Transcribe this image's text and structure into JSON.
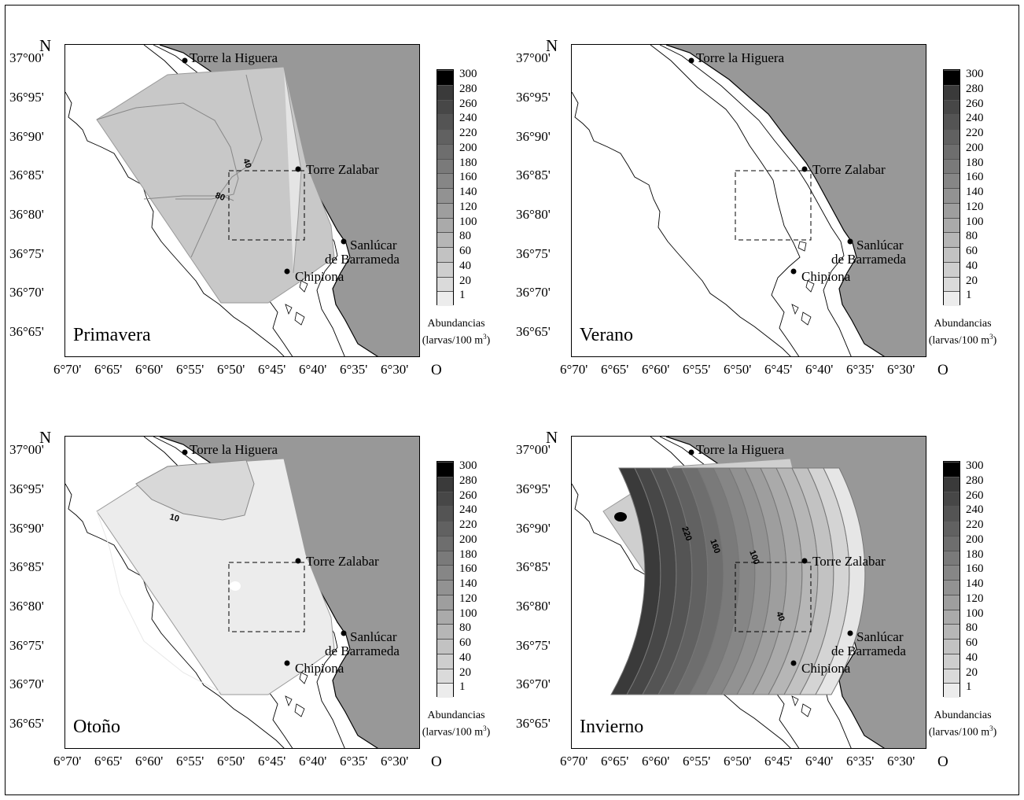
{
  "figure": {
    "north_label": "N",
    "direction_label": "O",
    "lat_ticks": [
      "37°00'",
      "36°95'",
      "36°90'",
      "36°85'",
      "36°80'",
      "36°75'",
      "36°70'",
      "36°65'"
    ],
    "lon_ticks": [
      "6°70'",
      "6°65'",
      "6°60'",
      "6°55'",
      "6°50'",
      "6°45'",
      "6°40'",
      "6°35'",
      "6°30'"
    ],
    "places": {
      "torre_higuera": "Torre la Higuera",
      "torre_zalabar": "Torre Zalabar",
      "sanlucar_1": "Sanlúcar",
      "sanlucar_2": "de Barrameda",
      "chipiona": "Chipiona"
    },
    "legend": {
      "levels": [
        "300",
        "280",
        "260",
        "240",
        "220",
        "200",
        "180",
        "160",
        "140",
        "120",
        "100",
        "80",
        "60",
        "40",
        "20",
        "1"
      ],
      "colors": [
        "#000000",
        "#3a3a3a",
        "#474747",
        "#545454",
        "#616161",
        "#6e6e6e",
        "#7a7a7a",
        "#868686",
        "#929292",
        "#9e9e9e",
        "#aaaaaa",
        "#b6b6b6",
        "#c2c2c2",
        "#cecece",
        "#dadada",
        "#ececec"
      ],
      "title_line1": "Abundancias",
      "title_line2": "(larvas/100 m",
      "title_sup": "3",
      "title_end": ")"
    },
    "land_color": "#989898",
    "panels": [
      {
        "season": "Primavera",
        "contour_labels": [
          "40",
          "80"
        ]
      },
      {
        "season": "Verano",
        "contour_labels": []
      },
      {
        "season": "Otoño",
        "contour_labels": [
          "10"
        ]
      },
      {
        "season": "Invierno",
        "contour_labels": [
          "220",
          "160",
          "100",
          "40"
        ]
      }
    ]
  }
}
